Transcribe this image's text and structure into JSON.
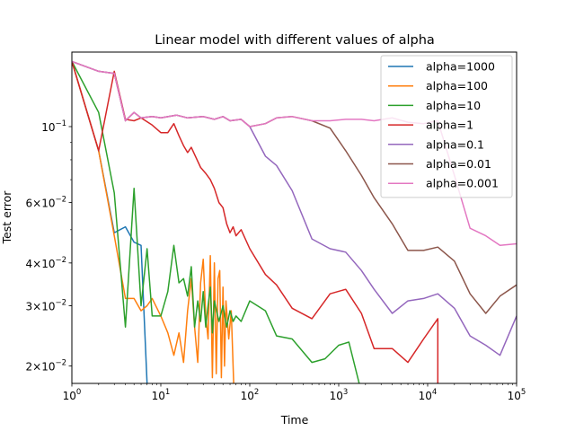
{
  "chart_data": {
    "type": "line",
    "title": "Linear model with different values of alpha",
    "xlabel": "Time",
    "ylabel": "Test error",
    "xscale": "log",
    "yscale": "log",
    "xlim": [
      1,
      100000
    ],
    "ylim": [
      0.0178,
      0.165
    ],
    "grid": false,
    "legend_position": "top-right",
    "x_ticks": [
      {
        "value": 1,
        "base": "10",
        "exp": "0"
      },
      {
        "value": 10,
        "base": "10",
        "exp": "1"
      },
      {
        "value": 100,
        "base": "10",
        "exp": "2"
      },
      {
        "value": 1000,
        "base": "10",
        "exp": "3"
      },
      {
        "value": 10000,
        "base": "10",
        "exp": "4"
      },
      {
        "value": 100000,
        "base": "10",
        "exp": "5"
      }
    ],
    "y_ticks": [
      {
        "value": 0.02,
        "mantissa": "2",
        "base": "10",
        "exp": "−2"
      },
      {
        "value": 0.03,
        "mantissa": "3",
        "base": "10",
        "exp": "−2"
      },
      {
        "value": 0.04,
        "mantissa": "4",
        "base": "10",
        "exp": "−2"
      },
      {
        "value": 0.06,
        "mantissa": "6",
        "base": "10",
        "exp": "−2"
      },
      {
        "value": 0.1,
        "mantissa": "",
        "base": "10",
        "exp": "−1"
      }
    ],
    "series": [
      {
        "name": "alpha=1000",
        "color": "#1f77b4",
        "points": [
          [
            1,
            0.155
          ],
          [
            2,
            0.085
          ],
          [
            3,
            0.049
          ],
          [
            4,
            0.051
          ],
          [
            5,
            0.046
          ],
          [
            6,
            0.045
          ],
          [
            7,
            0.0178
          ]
        ]
      },
      {
        "name": "alpha=100",
        "color": "#ff7f0e",
        "points": [
          [
            1,
            0.155
          ],
          [
            2,
            0.085
          ],
          [
            3,
            0.048
          ],
          [
            4,
            0.0315
          ],
          [
            5,
            0.0315
          ],
          [
            6,
            0.029
          ],
          [
            7,
            0.03
          ],
          [
            8,
            0.0315
          ],
          [
            10,
            0.028
          ],
          [
            12,
            0.025
          ],
          [
            14,
            0.0215
          ],
          [
            16,
            0.025
          ],
          [
            18,
            0.0205
          ],
          [
            20,
            0.029
          ],
          [
            22,
            0.036
          ],
          [
            24,
            0.026
          ],
          [
            26,
            0.0205
          ],
          [
            28,
            0.035
          ],
          [
            30,
            0.041
          ],
          [
            32,
            0.028
          ],
          [
            34,
            0.024
          ],
          [
            36,
            0.042
          ],
          [
            38,
            0.0185
          ],
          [
            40,
            0.04
          ],
          [
            42,
            0.019
          ],
          [
            44,
            0.036
          ],
          [
            46,
            0.038
          ],
          [
            48,
            0.0185
          ],
          [
            50,
            0.034
          ],
          [
            52,
            0.02
          ],
          [
            54,
            0.031
          ],
          [
            58,
            0.024
          ],
          [
            62,
            0.029
          ],
          [
            66,
            0.0178
          ]
        ]
      },
      {
        "name": "alpha=10",
        "color": "#2ca02c",
        "points": [
          [
            1,
            0.155
          ],
          [
            2,
            0.11
          ],
          [
            3,
            0.064
          ],
          [
            4,
            0.026
          ],
          [
            5,
            0.066
          ],
          [
            6,
            0.03
          ],
          [
            7,
            0.044
          ],
          [
            8,
            0.028
          ],
          [
            10,
            0.028
          ],
          [
            12,
            0.033
          ],
          [
            14,
            0.045
          ],
          [
            16,
            0.035
          ],
          [
            18,
            0.036
          ],
          [
            20,
            0.032
          ],
          [
            22,
            0.039
          ],
          [
            24,
            0.026
          ],
          [
            26,
            0.031
          ],
          [
            28,
            0.027
          ],
          [
            30,
            0.033
          ],
          [
            32,
            0.026
          ],
          [
            34,
            0.03
          ],
          [
            36,
            0.034
          ],
          [
            38,
            0.025
          ],
          [
            40,
            0.031
          ],
          [
            45,
            0.027
          ],
          [
            50,
            0.03
          ],
          [
            55,
            0.026
          ],
          [
            60,
            0.029
          ],
          [
            65,
            0.027
          ],
          [
            70,
            0.028
          ],
          [
            80,
            0.027
          ],
          [
            100,
            0.031
          ],
          [
            150,
            0.029
          ],
          [
            200,
            0.0245
          ],
          [
            300,
            0.024
          ],
          [
            500,
            0.0205
          ],
          [
            700,
            0.021
          ],
          [
            1000,
            0.023
          ],
          [
            1300,
            0.0235
          ],
          [
            1700,
            0.0178
          ]
        ]
      },
      {
        "name": "alpha=1",
        "color": "#d62728",
        "points": [
          [
            1,
            0.155
          ],
          [
            2,
            0.085
          ],
          [
            3,
            0.145
          ],
          [
            4,
            0.105
          ],
          [
            5,
            0.104
          ],
          [
            6,
            0.106
          ],
          [
            8,
            0.101
          ],
          [
            10,
            0.096
          ],
          [
            12,
            0.096
          ],
          [
            14,
            0.102
          ],
          [
            16,
            0.094
          ],
          [
            18,
            0.088
          ],
          [
            20,
            0.084
          ],
          [
            22,
            0.087
          ],
          [
            25,
            0.081
          ],
          [
            28,
            0.076
          ],
          [
            32,
            0.073
          ],
          [
            36,
            0.07
          ],
          [
            40,
            0.066
          ],
          [
            45,
            0.06
          ],
          [
            50,
            0.058
          ],
          [
            55,
            0.052
          ],
          [
            60,
            0.049
          ],
          [
            65,
            0.051
          ],
          [
            70,
            0.048
          ],
          [
            80,
            0.05
          ],
          [
            100,
            0.044
          ],
          [
            150,
            0.037
          ],
          [
            200,
            0.0345
          ],
          [
            300,
            0.0295
          ],
          [
            500,
            0.0275
          ],
          [
            800,
            0.0325
          ],
          [
            1200,
            0.0335
          ],
          [
            1800,
            0.0285
          ],
          [
            2500,
            0.0225
          ],
          [
            4000,
            0.0225
          ],
          [
            6000,
            0.0205
          ],
          [
            9000,
            0.024
          ],
          [
            13000,
            0.0275
          ],
          [
            13000,
            0.0178
          ]
        ]
      },
      {
        "name": "alpha=0.1",
        "color": "#9467bd",
        "points": [
          [
            1,
            0.155
          ],
          [
            2,
            0.145
          ],
          [
            3,
            0.143
          ],
          [
            4,
            0.104
          ],
          [
            5,
            0.11
          ],
          [
            6,
            0.106
          ],
          [
            8,
            0.107
          ],
          [
            10,
            0.106
          ],
          [
            15,
            0.108
          ],
          [
            20,
            0.106
          ],
          [
            30,
            0.107
          ],
          [
            40,
            0.105
          ],
          [
            50,
            0.107
          ],
          [
            60,
            0.104
          ],
          [
            80,
            0.105
          ],
          [
            100,
            0.1
          ],
          [
            150,
            0.082
          ],
          [
            200,
            0.077
          ],
          [
            300,
            0.065
          ],
          [
            500,
            0.047
          ],
          [
            800,
            0.044
          ],
          [
            1200,
            0.043
          ],
          [
            1800,
            0.038
          ],
          [
            2500,
            0.0335
          ],
          [
            4000,
            0.0285
          ],
          [
            6000,
            0.031
          ],
          [
            9000,
            0.0315
          ],
          [
            13000,
            0.0325
          ],
          [
            20000,
            0.0295
          ],
          [
            30000,
            0.0245
          ],
          [
            45000,
            0.023
          ],
          [
            65000,
            0.0215
          ],
          [
            100000,
            0.028
          ]
        ]
      },
      {
        "name": "alpha=0.01",
        "color": "#8c564b",
        "points": [
          [
            1,
            0.155
          ],
          [
            2,
            0.145
          ],
          [
            3,
            0.143
          ],
          [
            4,
            0.104
          ],
          [
            5,
            0.11
          ],
          [
            6,
            0.106
          ],
          [
            8,
            0.107
          ],
          [
            10,
            0.106
          ],
          [
            15,
            0.108
          ],
          [
            20,
            0.106
          ],
          [
            30,
            0.107
          ],
          [
            40,
            0.105
          ],
          [
            50,
            0.107
          ],
          [
            60,
            0.104
          ],
          [
            80,
            0.105
          ],
          [
            100,
            0.1
          ],
          [
            150,
            0.102
          ],
          [
            200,
            0.106
          ],
          [
            300,
            0.107
          ],
          [
            500,
            0.104
          ],
          [
            800,
            0.099
          ],
          [
            1200,
            0.085
          ],
          [
            1800,
            0.072
          ],
          [
            2500,
            0.062
          ],
          [
            4000,
            0.052
          ],
          [
            6000,
            0.0435
          ],
          [
            9000,
            0.0435
          ],
          [
            13000,
            0.0445
          ],
          [
            20000,
            0.0405
          ],
          [
            30000,
            0.0325
          ],
          [
            45000,
            0.0285
          ],
          [
            65000,
            0.032
          ],
          [
            100000,
            0.0345
          ]
        ]
      },
      {
        "name": "alpha=0.001",
        "color": "#e377c2",
        "points": [
          [
            1,
            0.155
          ],
          [
            2,
            0.145
          ],
          [
            3,
            0.143
          ],
          [
            4,
            0.104
          ],
          [
            5,
            0.11
          ],
          [
            6,
            0.106
          ],
          [
            8,
            0.107
          ],
          [
            10,
            0.106
          ],
          [
            15,
            0.108
          ],
          [
            20,
            0.106
          ],
          [
            30,
            0.107
          ],
          [
            40,
            0.105
          ],
          [
            50,
            0.107
          ],
          [
            60,
            0.104
          ],
          [
            80,
            0.105
          ],
          [
            100,
            0.1
          ],
          [
            150,
            0.102
          ],
          [
            200,
            0.106
          ],
          [
            300,
            0.107
          ],
          [
            500,
            0.104
          ],
          [
            800,
            0.104
          ],
          [
            1200,
            0.105
          ],
          [
            1800,
            0.105
          ],
          [
            2500,
            0.104
          ],
          [
            4000,
            0.106
          ],
          [
            6000,
            0.103
          ],
          [
            9000,
            0.102
          ],
          [
            13000,
            0.104
          ],
          [
            20000,
            0.072
          ],
          [
            30000,
            0.0505
          ],
          [
            45000,
            0.048
          ],
          [
            65000,
            0.045
          ],
          [
            100000,
            0.0455
          ]
        ]
      }
    ]
  }
}
